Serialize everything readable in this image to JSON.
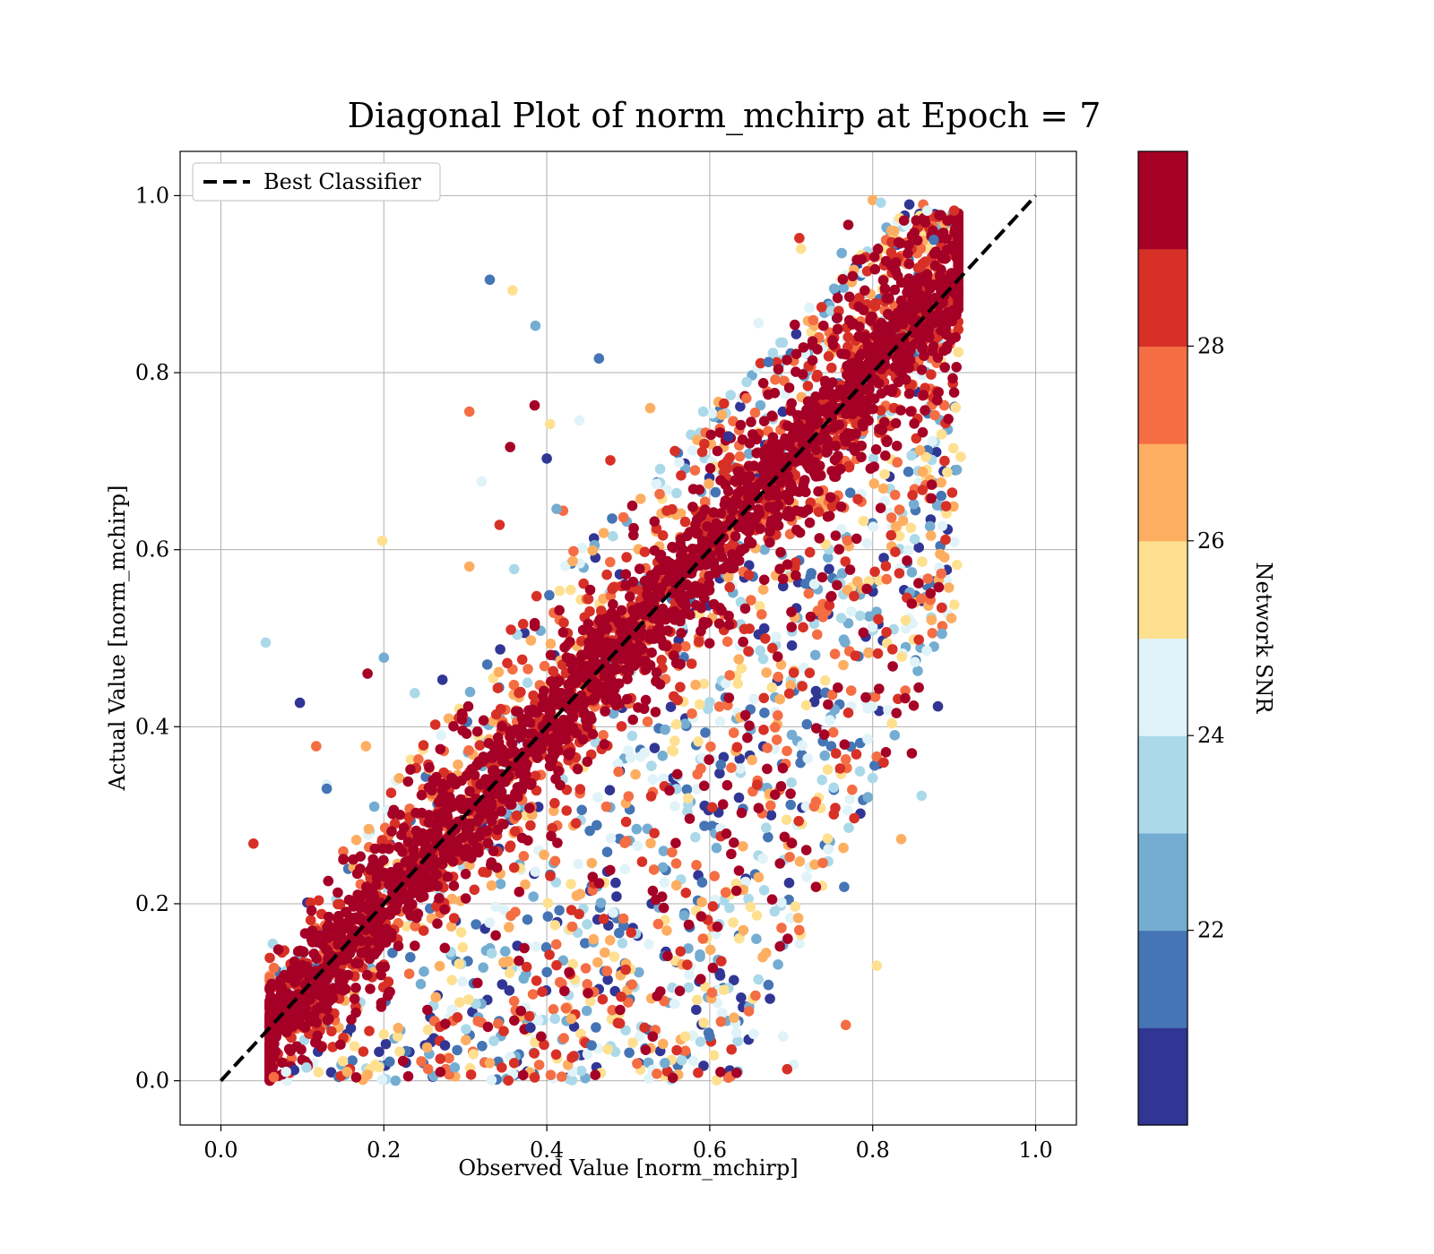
{
  "chart_data": {
    "type": "scatter",
    "title": "Diagonal Plot of norm_mchirp at Epoch = 7",
    "xlabel": "Observed Value [norm_mchirp]",
    "ylabel": "Actual Value [norm_mchirp]",
    "xlim": [
      -0.05,
      1.05
    ],
    "ylim": [
      -0.05,
      1.05
    ],
    "xticks": [
      "0.0",
      "0.2",
      "0.4",
      "0.6",
      "0.8",
      "1.0"
    ],
    "yticks": [
      "0.0",
      "0.2",
      "0.4",
      "0.6",
      "0.8",
      "1.0"
    ],
    "grid": true,
    "legend": {
      "position": "upper-left",
      "entries": [
        "Best Classifier"
      ]
    },
    "reference_line": {
      "name": "Best Classifier",
      "x": [
        0.0,
        1.0
      ],
      "y": [
        0.0,
        1.0
      ],
      "style": "dashed",
      "color": "#000000"
    },
    "colorbar": {
      "label": "Network SNR",
      "range": [
        20.0,
        30.0
      ],
      "ticks": [
        "22",
        "24",
        "26",
        "28"
      ],
      "levels": [
        "#313695",
        "#4575b4",
        "#74add1",
        "#abd9e9",
        "#e0f3f8",
        "#fee090",
        "#fdae61",
        "#f46d43",
        "#d73027",
        "#a50026"
      ]
    },
    "series": [
      {
        "x": [
          0.055,
          0.097,
          0.117,
          0.13,
          0.13,
          0.04,
          0.198,
          0.2,
          0.18,
          0.178,
          0.238,
          0.272,
          0.305,
          0.32,
          0.33,
          0.342,
          0.358,
          0.386,
          0.355,
          0.305,
          0.36,
          0.4,
          0.42,
          0.44,
          0.464,
          0.478,
          0.404,
          0.412,
          0.385,
          0.527,
          0.592,
          0.623,
          0.645,
          0.66,
          0.672,
          0.71,
          0.712,
          0.762,
          0.77,
          0.8,
          0.81,
          0.845,
          0.862,
          0.867,
          0.875,
          0.9,
          0.908,
          0.885,
          0.848,
          0.835,
          0.86,
          0.88,
          0.767,
          0.703,
          0.765,
          0.695,
          0.805,
          0.545,
          0.53,
          0.33,
          0.335,
          0.275,
          0.246,
          0.45,
          0.455,
          0.36,
          0.31,
          0.287,
          0.23,
          0.155,
          0.105,
          0.09,
          0.065,
          0.08,
          0.6,
          0.52,
          0.57,
          0.588,
          0.49,
          0.43,
          0.41,
          0.38,
          0.36,
          0.69
        ],
        "y": [
          0.495,
          0.427,
          0.378,
          0.335,
          0.33,
          0.268,
          0.61,
          0.478,
          0.46,
          0.378,
          0.438,
          0.453,
          0.756,
          0.677,
          0.905,
          0.628,
          0.893,
          0.853,
          0.716,
          0.581,
          0.578,
          0.703,
          0.644,
          0.746,
          0.816,
          0.701,
          0.742,
          0.646,
          0.763,
          0.76,
          0.756,
          0.728,
          0.771,
          0.856,
          0.812,
          0.952,
          0.94,
          0.935,
          0.967,
          0.995,
          0.992,
          0.99,
          0.99,
          0.983,
          0.95,
          0.983,
          0.705,
          0.505,
          0.37,
          0.273,
          0.322,
          0.423,
          0.063,
          0.018,
          0.219,
          0.013,
          0.13,
          0.02,
          0.05,
          0.02,
          0.045,
          0.04,
          0.022,
          0.03,
          0.04,
          0.02,
          0.03,
          0.015,
          0.005,
          0.01,
          0.015,
          0.012,
          0.004,
          0.01,
          0.05,
          0.06,
          0.05,
          0.14,
          0.08,
          0.07,
          0.07,
          0.06,
          0.09,
          0.05
        ]
      }
    ]
  }
}
